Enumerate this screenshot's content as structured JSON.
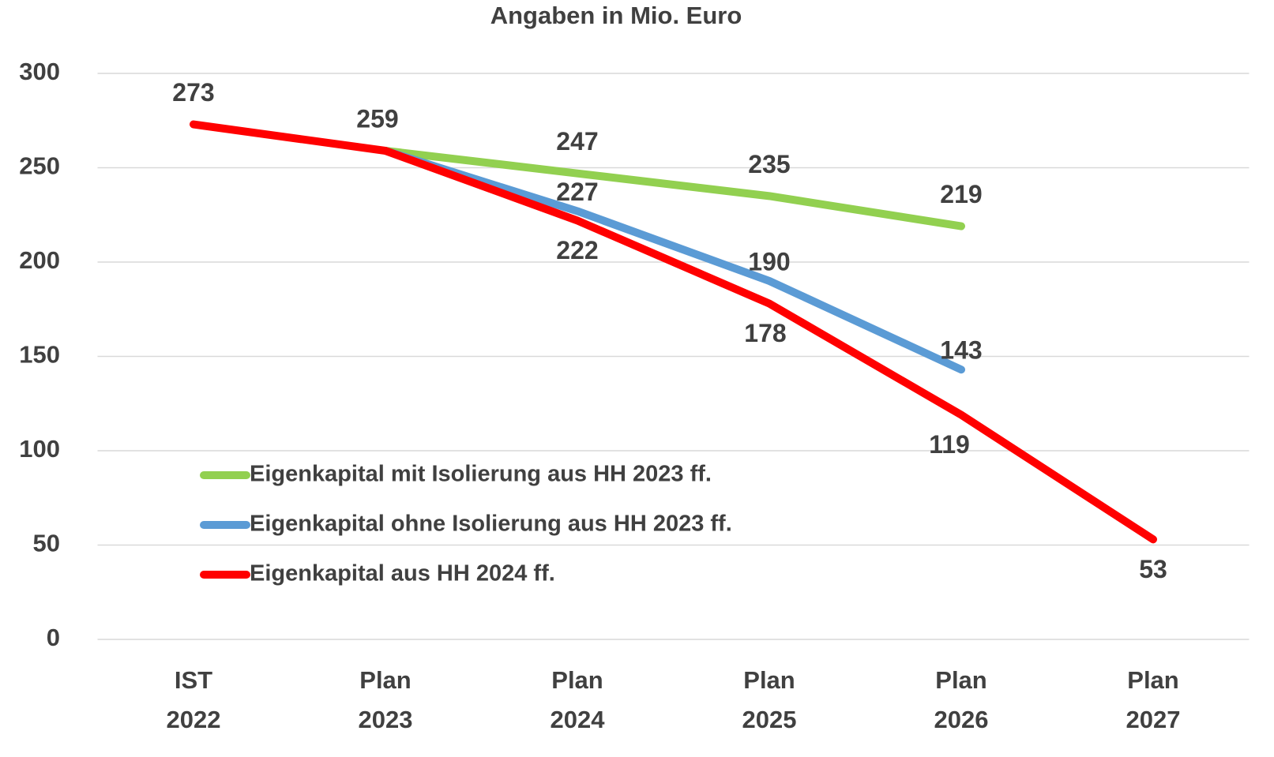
{
  "chart_data": {
    "type": "line",
    "title": "Angaben in Mio. Euro",
    "categories": [
      [
        "IST",
        "2022"
      ],
      [
        "Plan",
        "2023"
      ],
      [
        "Plan",
        "2024"
      ],
      [
        "Plan",
        "2025"
      ],
      [
        "Plan",
        "2026"
      ],
      [
        "Plan",
        "2027"
      ]
    ],
    "series": [
      {
        "name": "Eigenkapital mit Isolierung aus HH 2023 ff.",
        "color": "#92d050",
        "values": [
          null,
          259,
          247,
          235,
          219,
          null
        ],
        "value_labels": [
          null,
          null,
          "247",
          "235",
          "219",
          null
        ]
      },
      {
        "name": "Eigenkapital ohne Isolierung aus HH 2023 ff.",
        "color": "#5b9bd5",
        "values": [
          null,
          259,
          227,
          190,
          143,
          null
        ],
        "value_labels": [
          null,
          null,
          "227",
          "190",
          "143",
          null
        ]
      },
      {
        "name": "Eigenkapital aus HH 2024 ff.",
        "color": "#ff0000",
        "values": [
          273,
          259,
          222,
          178,
          119,
          53
        ],
        "value_labels": [
          "273",
          "259",
          "222",
          "178",
          "119",
          "53"
        ]
      }
    ],
    "ylim": [
      0,
      300
    ],
    "yticks": [
      0,
      50,
      100,
      150,
      200,
      250,
      300
    ],
    "grid": true,
    "legend": "left"
  }
}
